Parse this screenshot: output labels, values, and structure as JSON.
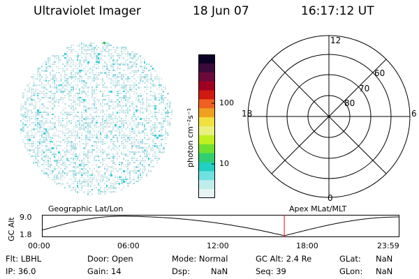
{
  "header": {
    "instrument": "Ultraviolet Imager",
    "date": "18 Jun 07",
    "time": "16:17:12 UT"
  },
  "colorbar": {
    "unit_label": "photon cm⁻²s⁻¹",
    "ticks": [
      "100",
      "10"
    ],
    "colors": [
      "#0b0025",
      "#3a0a3a",
      "#6a0a3a",
      "#a00020",
      "#d01a10",
      "#f06020",
      "#f0a020",
      "#f0e040",
      "#e8f080",
      "#c0f020",
      "#70e030",
      "#30d070",
      "#20d0c0",
      "#70e0e0",
      "#c0ecec",
      "#e8f4f4"
    ]
  },
  "polar_plot": {
    "mlt_labels": [
      "12",
      "18",
      "6",
      "0"
    ],
    "lat_labels": [
      "60",
      "70",
      "80"
    ]
  },
  "altitude_strip": {
    "ylabel": "GC Alt",
    "yticks": [
      "9.0",
      "1.8"
    ],
    "left_caption": "Geographic Lat/Lon",
    "right_caption": "Apex MLat/MLT",
    "xticks": [
      "00:00",
      "06:00",
      "12:00",
      "18:00",
      "23:59"
    ],
    "current_time_fraction": 0.678
  },
  "info": {
    "flt": "Flt: LBHL",
    "ip": "IP: 36.0",
    "door": "Door: Open",
    "gain": "Gain: 14",
    "mode": "Mode: Normal",
    "dsp_label": "Dsp:",
    "dsp_value": "NaN",
    "gc_alt": "GC Alt: 2.4 Re",
    "seq": "Seq: 39",
    "glat_label": "GLat:",
    "glat_value": "NaN",
    "glon_label": "GLon:",
    "glon_value": "NaN"
  }
}
